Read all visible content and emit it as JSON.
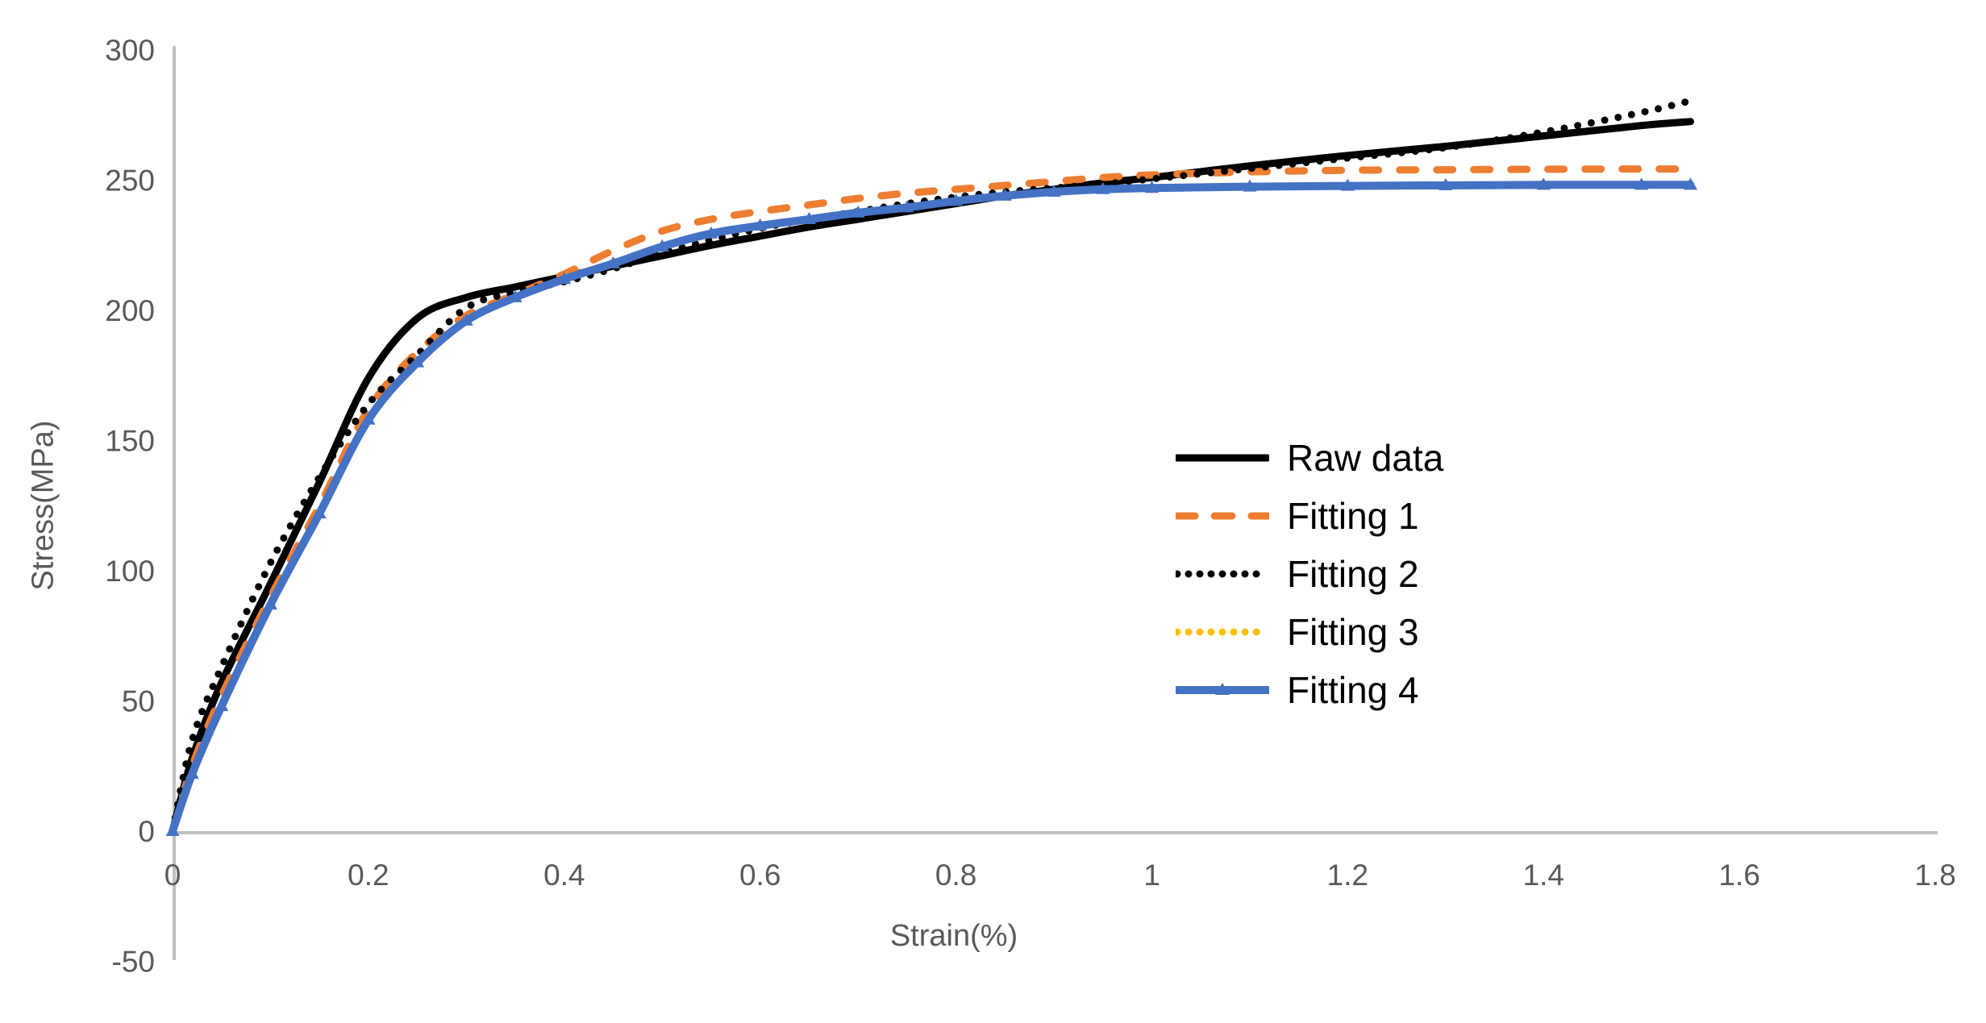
{
  "chart_data": {
    "type": "line",
    "title": "",
    "xlabel": "Strain(%)",
    "ylabel": "Stress(MPa)",
    "xlim": [
      0,
      1.8
    ],
    "ylim": [
      -50,
      300
    ],
    "grid": false,
    "legend_position": "center-right-inside",
    "x_ticks": [
      0,
      0.2,
      0.4,
      0.6,
      0.8,
      1,
      1.2,
      1.4,
      1.6,
      1.8
    ],
    "x_tick_labels": [
      "0",
      "0.2",
      "0.4",
      "0.6",
      "0.8",
      "1",
      "1.2",
      "1.4",
      "1.6",
      "1.8"
    ],
    "y_ticks": [
      -50,
      0,
      50,
      100,
      150,
      200,
      250,
      300
    ],
    "y_tick_labels": [
      "-50",
      "0",
      "50",
      "100",
      "150",
      "200",
      "250",
      "300"
    ],
    "axis_color": "#c0c0c0",
    "tick_label_color": "#595959",
    "strain": [
      0,
      0.02,
      0.05,
      0.1,
      0.15,
      0.2,
      0.25,
      0.3,
      0.35,
      0.4,
      0.45,
      0.5,
      0.55,
      0.6,
      0.65,
      0.7,
      0.75,
      0.8,
      0.85,
      0.9,
      0.95,
      1.0,
      1.1,
      1.2,
      1.3,
      1.4,
      1.5,
      1.55
    ],
    "series": [
      {
        "name": "Raw data",
        "color": "#000000",
        "style": "solid",
        "width": 9,
        "values": [
          0,
          28,
          57,
          95,
          134,
          174,
          197,
          205,
          209,
          213,
          217,
          221,
          225,
          228.5,
          232,
          235,
          238,
          241,
          244,
          246.5,
          249,
          251,
          255.5,
          259.5,
          263,
          267,
          271,
          272.5
        ]
      },
      {
        "name": "Fitting 1",
        "color": "#ED7D31",
        "style": "dashed",
        "width": 9,
        "values": [
          0,
          25,
          52,
          90,
          125,
          162,
          184,
          198,
          206,
          214,
          223,
          230.5,
          235,
          238,
          240.5,
          243,
          245,
          246.5,
          248,
          249.5,
          251,
          252,
          253.2,
          253.8,
          254,
          254.2,
          254.3,
          254.3
        ]
      },
      {
        "name": "Fitting 2",
        "color": "#000000",
        "style": "dotted",
        "width": 9,
        "values": [
          0,
          35,
          63,
          103,
          136,
          164,
          183,
          201,
          207,
          211,
          216,
          222,
          227,
          231.5,
          235,
          238,
          241,
          243.5,
          245.5,
          247,
          248.5,
          250.5,
          254.5,
          258.5,
          262.5,
          268.5,
          276,
          280.5
        ]
      },
      {
        "name": "Fitting 3",
        "color": "#FFC000",
        "style": "dotted",
        "width": 9,
        "values": [
          0,
          22,
          48,
          87,
          122,
          158,
          180,
          196,
          205,
          212,
          218,
          224.5,
          229.5,
          232.5,
          235,
          237.5,
          239.5,
          242,
          244,
          245.5,
          246.5,
          247,
          247.5,
          247.8,
          248,
          248.2,
          248.2,
          248.2
        ]
      },
      {
        "name": "Fitting 4",
        "color": "#4472C4",
        "style": "solid-triangle",
        "width": 10,
        "values": [
          0,
          22,
          48,
          87,
          122,
          158,
          180,
          196,
          205,
          212,
          218,
          224.5,
          229.5,
          232.5,
          235,
          237.5,
          239.5,
          242,
          244,
          245.5,
          246.5,
          247,
          247.5,
          247.8,
          248,
          248.2,
          248.2,
          248.2
        ]
      }
    ]
  }
}
